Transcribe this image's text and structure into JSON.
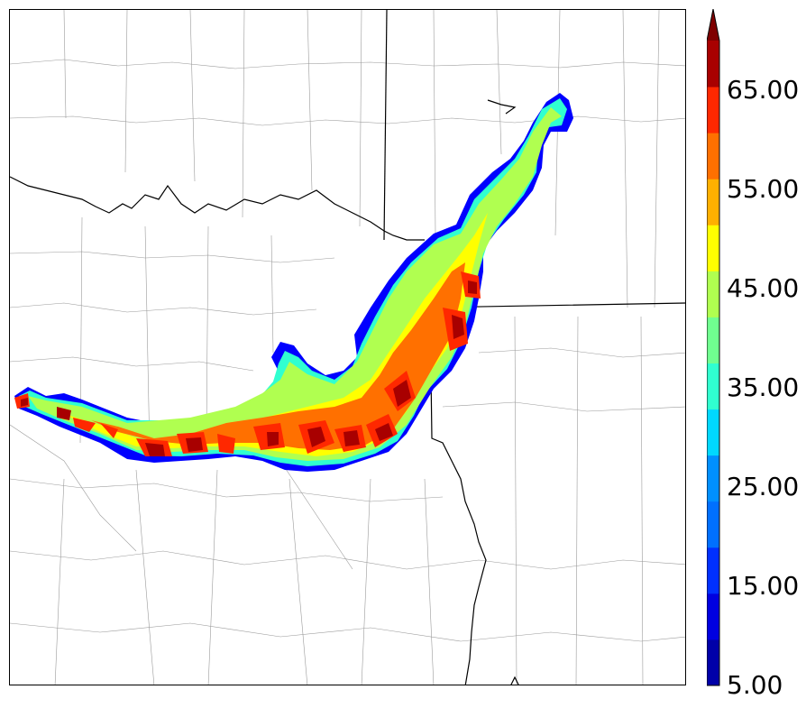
{
  "colorbar": {
    "colors": [
      "#0000a8",
      "#0000e0",
      "#0030ff",
      "#0070ff",
      "#0090ff",
      "#00d8ff",
      "#30ffd0",
      "#70ff90",
      "#b0ff50",
      "#ffff00",
      "#ffb000",
      "#ff7000",
      "#ff2800",
      "#a80000"
    ],
    "extend_color": "#7f0000",
    "tick_labels": [
      "65.00",
      "55.00",
      "45.00",
      "35.00",
      "25.00",
      "15.00",
      "5.00"
    ]
  },
  "layers": {
    "county_lines_color": "#9a9a9a",
    "state_lines_color": "#000000",
    "band_colors": [
      "#0000ff",
      "#30ffd0",
      "#b0ff50",
      "#ffff00",
      "#ff7000",
      "#ff2800",
      "#a80000"
    ]
  }
}
